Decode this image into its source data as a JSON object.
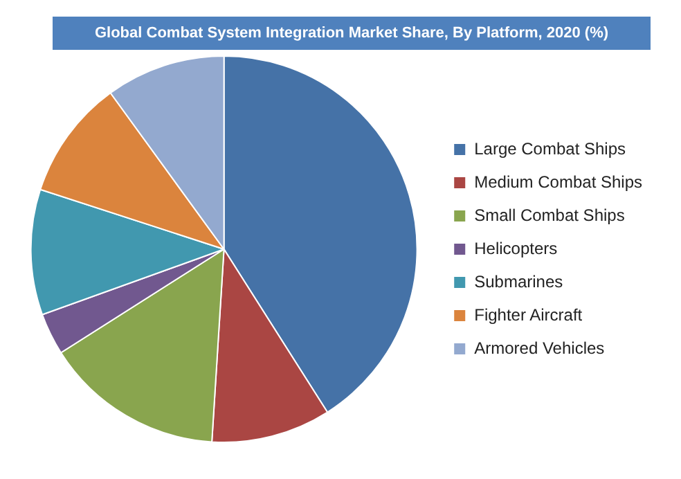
{
  "chart_data": {
    "type": "pie",
    "title": "Global Combat System Integration Market Share, By Platform, 2020 (%)",
    "categories": [
      "Large Combat Ships",
      "Medium Combat Ships",
      "Small Combat Ships",
      "Helicopters",
      "Submarines",
      "Fighter Aircraft",
      "Armored Vehicles"
    ],
    "values": [
      41,
      10,
      15,
      3.5,
      10.5,
      10,
      10
    ],
    "colors": [
      "#4572a7",
      "#aa4643",
      "#89a54e",
      "#71588f",
      "#4198af",
      "#db843d",
      "#93a9cf"
    ],
    "legend": "right"
  }
}
